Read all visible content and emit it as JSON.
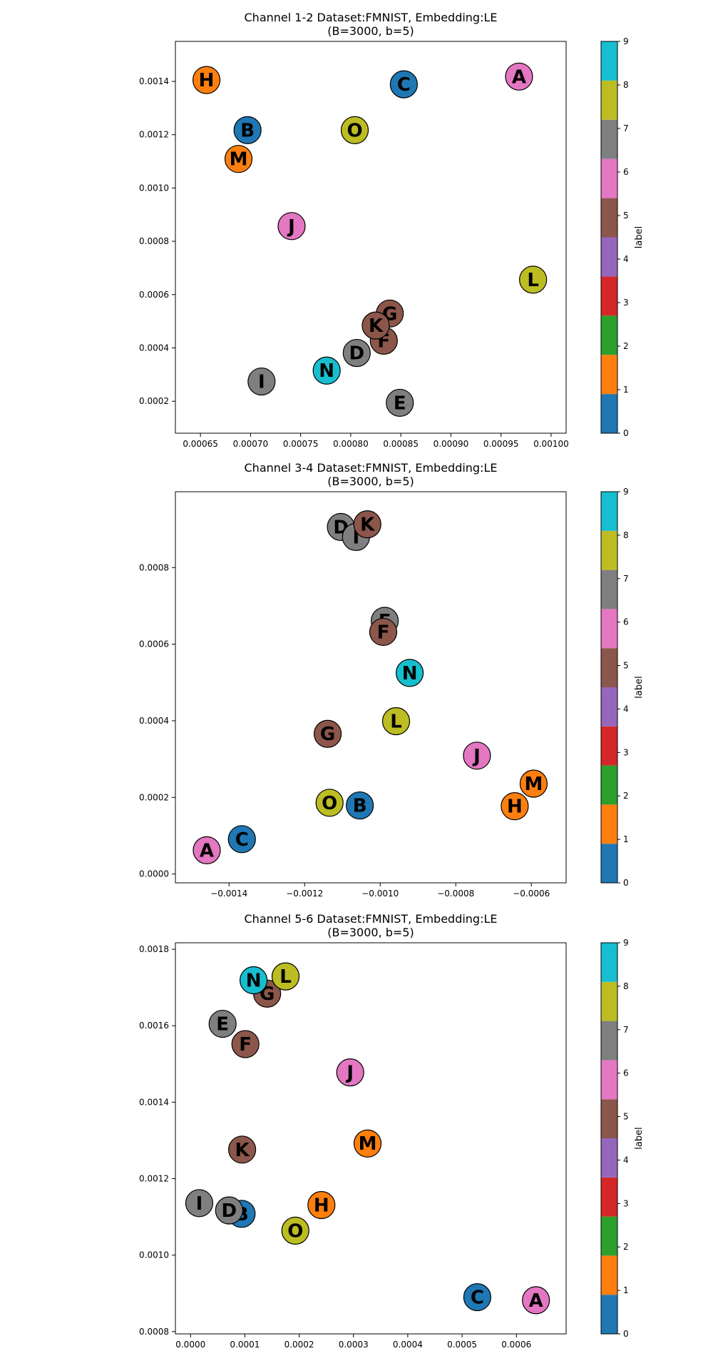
{
  "colormap": [
    "#1f77b4",
    "#ff7f0e",
    "#2ca02c",
    "#d62728",
    "#9467bd",
    "#8c564b",
    "#e377c2",
    "#7f7f7f",
    "#bcbd22",
    "#17becf"
  ],
  "chart_data": [
    {
      "type": "scatter",
      "title": "Channel 1-2 Dataset:FMNIST, Embedding:LE",
      "subtitle": "(B=3000, b=5)",
      "xlim": [
        0.000625,
        0.001015
      ],
      "ylim": [
        8e-05,
        0.00155
      ],
      "xticks": [
        {
          "v": 0.00065,
          "label": "0.00065"
        },
        {
          "v": 0.0007,
          "label": "0.00070"
        },
        {
          "v": 0.00075,
          "label": "0.00075"
        },
        {
          "v": 0.0008,
          "label": "0.00080"
        },
        {
          "v": 0.00085,
          "label": "0.00085"
        },
        {
          "v": 0.0009,
          "label": "0.00090"
        },
        {
          "v": 0.00095,
          "label": "0.00095"
        },
        {
          "v": 0.001,
          "label": "0.00100"
        }
      ],
      "yticks": [
        {
          "v": 0.0002,
          "label": "0.0002"
        },
        {
          "v": 0.0004,
          "label": "0.0004"
        },
        {
          "v": 0.0006,
          "label": "0.0006"
        },
        {
          "v": 0.0008,
          "label": "0.0008"
        },
        {
          "v": 0.001,
          "label": "0.0010"
        },
        {
          "v": 0.0012,
          "label": "0.0012"
        },
        {
          "v": 0.0014,
          "label": "0.0014"
        }
      ],
      "colorbar_label": "label",
      "colorbar_ticks": [
        "0",
        "1",
        "2",
        "3",
        "4",
        "5",
        "6",
        "7",
        "8",
        "9"
      ],
      "points": [
        {
          "name": "A",
          "x": 0.000968,
          "y": 0.001418,
          "c": 6
        },
        {
          "name": "B",
          "x": 0.000697,
          "y": 0.001217,
          "c": 0
        },
        {
          "name": "C",
          "x": 0.000853,
          "y": 0.001389,
          "c": 0
        },
        {
          "name": "D",
          "x": 0.000806,
          "y": 0.000381,
          "c": 7
        },
        {
          "name": "E",
          "x": 0.000849,
          "y": 0.000194,
          "c": 7
        },
        {
          "name": "F",
          "x": 0.000833,
          "y": 0.000427,
          "c": 5
        },
        {
          "name": "G",
          "x": 0.000839,
          "y": 0.000529,
          "c": 5
        },
        {
          "name": "H",
          "x": 0.000656,
          "y": 0.001405,
          "c": 1
        },
        {
          "name": "I",
          "x": 0.000711,
          "y": 0.000274,
          "c": 7
        },
        {
          "name": "J",
          "x": 0.000741,
          "y": 0.000857,
          "c": 6
        },
        {
          "name": "K",
          "x": 0.000825,
          "y": 0.000484,
          "c": 5
        },
        {
          "name": "L",
          "x": 0.000982,
          "y": 0.000656,
          "c": 8
        },
        {
          "name": "M",
          "x": 0.000688,
          "y": 0.001109,
          "c": 1
        },
        {
          "name": "N",
          "x": 0.000776,
          "y": 0.000315,
          "c": 9
        },
        {
          "name": "O",
          "x": 0.000804,
          "y": 0.001217,
          "c": 8
        }
      ]
    },
    {
      "type": "scatter",
      "title": "Channel 3-4 Dataset:FMNIST, Embedding:LE",
      "subtitle": "(B=3000, b=5)",
      "xlim": [
        -0.001542,
        -0.000508
      ],
      "ylim": [
        -2.3e-05,
        0.000998
      ],
      "xticks": [
        {
          "v": -0.0014,
          "label": "−0.0014"
        },
        {
          "v": -0.0012,
          "label": "−0.0012"
        },
        {
          "v": -0.001,
          "label": "−0.0010"
        },
        {
          "v": -0.0008,
          "label": "−0.0008"
        },
        {
          "v": -0.0006,
          "label": "−0.0006"
        }
      ],
      "yticks": [
        {
          "v": 0.0,
          "label": "0.0000"
        },
        {
          "v": 0.0002,
          "label": "0.0002"
        },
        {
          "v": 0.0004,
          "label": "0.0004"
        },
        {
          "v": 0.0006,
          "label": "0.0006"
        },
        {
          "v": 0.0008,
          "label": "0.0008"
        }
      ],
      "colorbar_label": "label",
      "colorbar_ticks": [
        "0",
        "1",
        "2",
        "3",
        "4",
        "5",
        "6",
        "7",
        "8",
        "9"
      ],
      "points": [
        {
          "name": "A",
          "x": -0.001459,
          "y": 6.2e-05,
          "c": 6
        },
        {
          "name": "B",
          "x": -0.001054,
          "y": 0.000179,
          "c": 0
        },
        {
          "name": "C",
          "x": -0.001366,
          "y": 9.1e-05,
          "c": 0
        },
        {
          "name": "D",
          "x": -0.001104,
          "y": 0.000906,
          "c": 7
        },
        {
          "name": "E",
          "x": -0.000988,
          "y": 0.000661,
          "c": 7
        },
        {
          "name": "F",
          "x": -0.000992,
          "y": 0.000632,
          "c": 5
        },
        {
          "name": "G",
          "x": -0.001139,
          "y": 0.000366,
          "c": 5
        },
        {
          "name": "H",
          "x": -0.000644,
          "y": 0.000177,
          "c": 1
        },
        {
          "name": "I",
          "x": -0.001064,
          "y": 0.00088,
          "c": 7
        },
        {
          "name": "J",
          "x": -0.000744,
          "y": 0.000309,
          "c": 6
        },
        {
          "name": "K",
          "x": -0.001034,
          "y": 0.000913,
          "c": 5
        },
        {
          "name": "L",
          "x": -0.000958,
          "y": 0.000399,
          "c": 8
        },
        {
          "name": "M",
          "x": -0.000594,
          "y": 0.000236,
          "c": 1
        },
        {
          "name": "N",
          "x": -0.000922,
          "y": 0.000525,
          "c": 9
        },
        {
          "name": "O",
          "x": -0.001134,
          "y": 0.000186,
          "c": 8
        }
      ]
    },
    {
      "type": "scatter",
      "title": "Channel 5-6 Dataset:FMNIST, Embedding:LE",
      "subtitle": "(B=3000, b=5)",
      "xlim": [
        -2.79e-05,
        0.0006916
      ],
      "ylim": [
        0.000794,
        0.001817
      ],
      "xticks": [
        {
          "v": 0.0,
          "label": "0.0000"
        },
        {
          "v": 0.0001,
          "label": "0.0001"
        },
        {
          "v": 0.0002,
          "label": "0.0002"
        },
        {
          "v": 0.0003,
          "label": "0.0003"
        },
        {
          "v": 0.0004,
          "label": "0.0004"
        },
        {
          "v": 0.0005,
          "label": "0.0005"
        },
        {
          "v": 0.0006,
          "label": "0.0006"
        }
      ],
      "yticks": [
        {
          "v": 0.0008,
          "label": "0.0008"
        },
        {
          "v": 0.001,
          "label": "0.0010"
        },
        {
          "v": 0.0012,
          "label": "0.0012"
        },
        {
          "v": 0.0014,
          "label": "0.0014"
        },
        {
          "v": 0.0016,
          "label": "0.0016"
        },
        {
          "v": 0.0018,
          "label": "0.0018"
        }
      ],
      "colorbar_label": "label",
      "colorbar_ticks": [
        "0",
        "1",
        "2",
        "3",
        "4",
        "5",
        "6",
        "7",
        "8",
        "9"
      ],
      "points": [
        {
          "name": "A",
          "x": 0.000636,
          "y": 0.000882,
          "c": 6
        },
        {
          "name": "B",
          "x": 9.4e-05,
          "y": 0.001108,
          "c": 0
        },
        {
          "name": "C",
          "x": 0.000528,
          "y": 0.00089,
          "c": 0
        },
        {
          "name": "D",
          "x": 7.1e-05,
          "y": 0.001117,
          "c": 7
        },
        {
          "name": "E",
          "x": 5.9e-05,
          "y": 0.001605,
          "c": 7
        },
        {
          "name": "F",
          "x": 0.000101,
          "y": 0.001552,
          "c": 5
        },
        {
          "name": "G",
          "x": 0.000141,
          "y": 0.001684,
          "c": 5
        },
        {
          "name": "H",
          "x": 0.000241,
          "y": 0.001131,
          "c": 1
        },
        {
          "name": "I",
          "x": 1.6e-05,
          "y": 0.001136,
          "c": 7
        },
        {
          "name": "J",
          "x": 0.000294,
          "y": 0.001478,
          "c": 6
        },
        {
          "name": "K",
          "x": 9.5e-05,
          "y": 0.001276,
          "c": 5
        },
        {
          "name": "L",
          "x": 0.000175,
          "y": 0.001729,
          "c": 8
        },
        {
          "name": "M",
          "x": 0.000326,
          "y": 0.001292,
          "c": 1
        },
        {
          "name": "N",
          "x": 0.000116,
          "y": 0.001719,
          "c": 9
        },
        {
          "name": "O",
          "x": 0.000193,
          "y": 0.001064,
          "c": 8
        }
      ]
    }
  ]
}
